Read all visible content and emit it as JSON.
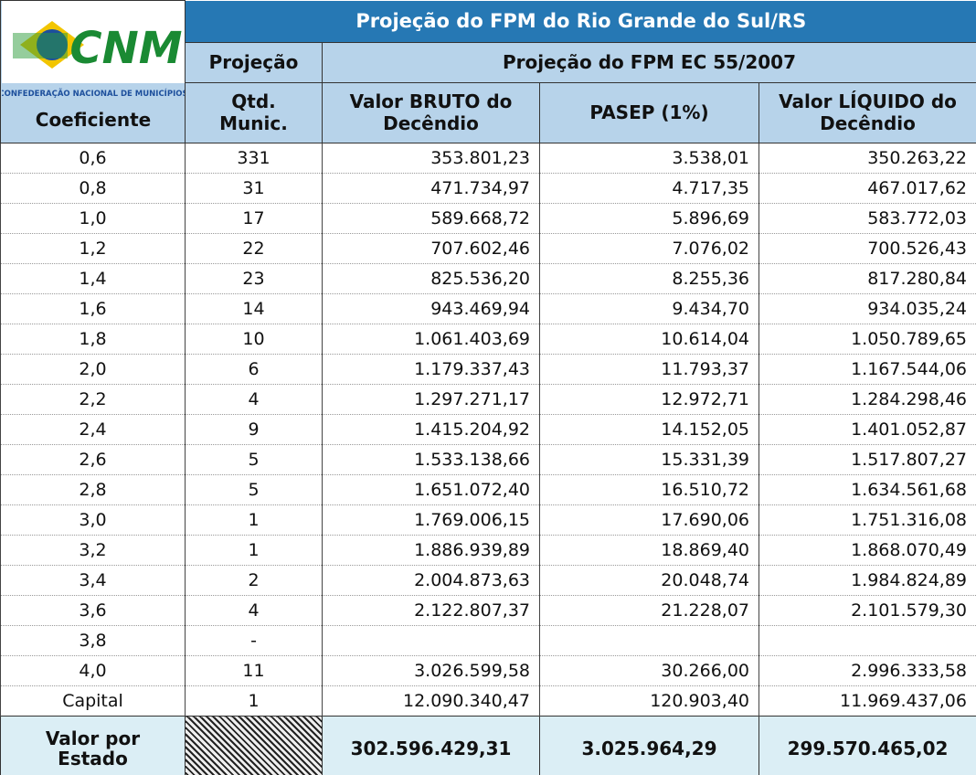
{
  "logo": {
    "brand": "CNM",
    "caption": "CONFEDERAÇÃO NACIONAL DE MUNICÍPIOS"
  },
  "table": {
    "title": "Projeção do FPM do Rio Grande do Sul/RS",
    "group_headers": [
      "Projeção",
      "Projeção do FPM EC 55/2007"
    ],
    "headers": [
      [
        "Coeficiente"
      ],
      [
        "Qtd.",
        "Munic."
      ],
      [
        "Valor BRUTO do",
        "Decêndio"
      ],
      [
        "PASEP (1%)"
      ],
      [
        "Valor LÍQUIDO do",
        "Decêndio"
      ]
    ],
    "rows": [
      [
        "0,6",
        "331",
        "353.801,23",
        "3.538,01",
        "350.263,22"
      ],
      [
        "0,8",
        "31",
        "471.734,97",
        "4.717,35",
        "467.017,62"
      ],
      [
        "1,0",
        "17",
        "589.668,72",
        "5.896,69",
        "583.772,03"
      ],
      [
        "1,2",
        "22",
        "707.602,46",
        "7.076,02",
        "700.526,43"
      ],
      [
        "1,4",
        "23",
        "825.536,20",
        "8.255,36",
        "817.280,84"
      ],
      [
        "1,6",
        "14",
        "943.469,94",
        "9.434,70",
        "934.035,24"
      ],
      [
        "1,8",
        "10",
        "1.061.403,69",
        "10.614,04",
        "1.050.789,65"
      ],
      [
        "2,0",
        "6",
        "1.179.337,43",
        "11.793,37",
        "1.167.544,06"
      ],
      [
        "2,2",
        "4",
        "1.297.271,17",
        "12.972,71",
        "1.284.298,46"
      ],
      [
        "2,4",
        "9",
        "1.415.204,92",
        "14.152,05",
        "1.401.052,87"
      ],
      [
        "2,6",
        "5",
        "1.533.138,66",
        "15.331,39",
        "1.517.807,27"
      ],
      [
        "2,8",
        "5",
        "1.651.072,40",
        "16.510,72",
        "1.634.561,68"
      ],
      [
        "3,0",
        "1",
        "1.769.006,15",
        "17.690,06",
        "1.751.316,08"
      ],
      [
        "3,2",
        "1",
        "1.886.939,89",
        "18.869,40",
        "1.868.070,49"
      ],
      [
        "3,4",
        "2",
        "2.004.873,63",
        "20.048,74",
        "1.984.824,89"
      ],
      [
        "3,6",
        "4",
        "2.122.807,37",
        "21.228,07",
        "2.101.579,30"
      ],
      [
        "3,8",
        "-"
      ],
      [
        "4,0",
        "11",
        "3.026.599,58",
        "30.266,00",
        "2.996.333,58"
      ],
      [
        "Capital",
        "1",
        "12.090.340,47",
        "120.903,40",
        "11.969.437,06"
      ]
    ],
    "total": {
      "label": [
        "Valor por",
        "Estado"
      ],
      "values": [
        "302.596.429,31",
        "3.025.964,29",
        "299.570.465,02"
      ]
    }
  }
}
